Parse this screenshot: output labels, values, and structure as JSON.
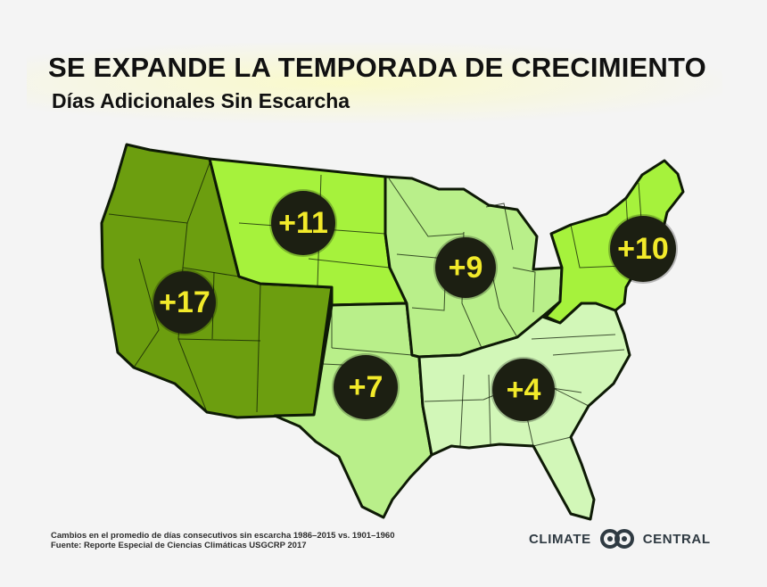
{
  "header": {
    "title": "SE EXPANDE LA TEMPORADA DE CRECIMIENTO",
    "subtitle": "Días Adicionales Sin Escarcha"
  },
  "colors": {
    "west": "#6c9e0f",
    "north_plains": "#a6f23c",
    "northeast": "#a6f23c",
    "midwest": "#b9ef8a",
    "south_plains": "#b9ef8a",
    "southeast": "#d2f7b8",
    "borders": "#0e1a06",
    "badge_text": "#f2ea2a",
    "badge_fill": "#1c1f12"
  },
  "regions": [
    {
      "id": "northwest_southwest",
      "label": "+17"
    },
    {
      "id": "great_plains_north",
      "label": "+11"
    },
    {
      "id": "midwest",
      "label": "+9"
    },
    {
      "id": "northeast",
      "label": "+10"
    },
    {
      "id": "great_plains_south",
      "label": "+7"
    },
    {
      "id": "southeast",
      "label": "+4"
    }
  ],
  "footer": {
    "note_line1": "Cambios en el promedio de días consecutivos sin escarcha 1986–2015 vs. 1901–1960",
    "note_line2": "Fuente: Reporte Especial de Ciencias Climáticas USGCRP 2017",
    "logo_left": "CLIMATE",
    "logo_right": "CENTRAL",
    "logo_icon": "linked-rings-icon"
  }
}
